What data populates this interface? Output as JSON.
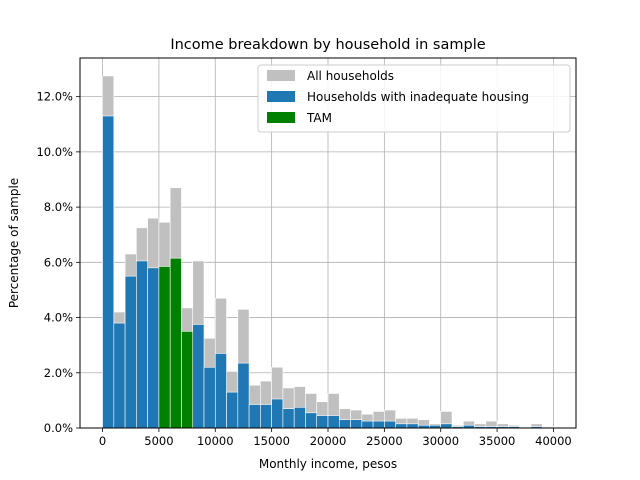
{
  "chart_data": {
    "type": "bar",
    "title": "Income breakdown by household in sample",
    "xlabel": "Monthly income, pesos",
    "ylabel": "Percentage of sample",
    "xlim": [
      -2000,
      42000
    ],
    "ylim": [
      0,
      13.4
    ],
    "grid": true,
    "legend_position": "top-right",
    "bin_width": 1000,
    "x_ticks": [
      0,
      5000,
      10000,
      15000,
      20000,
      25000,
      30000,
      35000,
      40000
    ],
    "x_tick_labels": [
      "0",
      "5000",
      "10000",
      "15000",
      "20000",
      "25000",
      "30000",
      "35000",
      "40000"
    ],
    "y_ticks": [
      0,
      2,
      4,
      6,
      8,
      10,
      12
    ],
    "y_tick_labels": [
      "0.0%",
      "2.0%",
      "4.0%",
      "6.0%",
      "8.0%",
      "10.0%",
      "12.0%"
    ],
    "bin_starts": [
      0,
      1000,
      2000,
      3000,
      4000,
      5000,
      6000,
      7000,
      8000,
      9000,
      10000,
      11000,
      12000,
      13000,
      14000,
      15000,
      16000,
      17000,
      18000,
      19000,
      20000,
      21000,
      22000,
      23000,
      24000,
      25000,
      26000,
      27000,
      28000,
      29000,
      30000,
      31000,
      32000,
      33000,
      34000,
      35000,
      36000,
      37000,
      38000,
      39000
    ],
    "series": [
      {
        "name": "All households",
        "color": "#c0c0c0",
        "values": [
          12.75,
          4.2,
          6.3,
          7.25,
          7.6,
          7.45,
          8.7,
          4.35,
          6.05,
          3.25,
          4.7,
          2.05,
          4.3,
          1.55,
          1.7,
          2.2,
          1.45,
          1.5,
          1.25,
          0.95,
          1.25,
          0.7,
          0.65,
          0.5,
          0.6,
          0.65,
          0.35,
          0.35,
          0.3,
          0.15,
          0.6,
          0.1,
          0.25,
          0.15,
          0.25,
          0.15,
          0.1,
          0.05,
          0.15,
          0.05
        ]
      },
      {
        "name": "Households with inadequate housing",
        "color": "#1f77b4",
        "values": [
          11.3,
          3.8,
          5.5,
          6.05,
          5.8,
          0,
          0,
          0,
          3.75,
          2.2,
          2.7,
          1.3,
          2.35,
          0.85,
          0.85,
          1.05,
          0.7,
          0.75,
          0.55,
          0.45,
          0.45,
          0.3,
          0.3,
          0.25,
          0.25,
          0.25,
          0.15,
          0.15,
          0.1,
          0.1,
          0.15,
          0.05,
          0.1,
          0.05,
          0.05,
          0.05,
          0.05,
          0.02,
          0.05,
          0.02
        ]
      },
      {
        "name": "TAM",
        "color": "#008000",
        "values": [
          0,
          0,
          0,
          0,
          0,
          5.85,
          6.15,
          3.5,
          0,
          0,
          0,
          0,
          0,
          0,
          0,
          0,
          0,
          0,
          0,
          0,
          0,
          0,
          0,
          0,
          0,
          0,
          0,
          0,
          0,
          0,
          0,
          0,
          0,
          0,
          0,
          0,
          0,
          0,
          0,
          0
        ]
      }
    ]
  }
}
